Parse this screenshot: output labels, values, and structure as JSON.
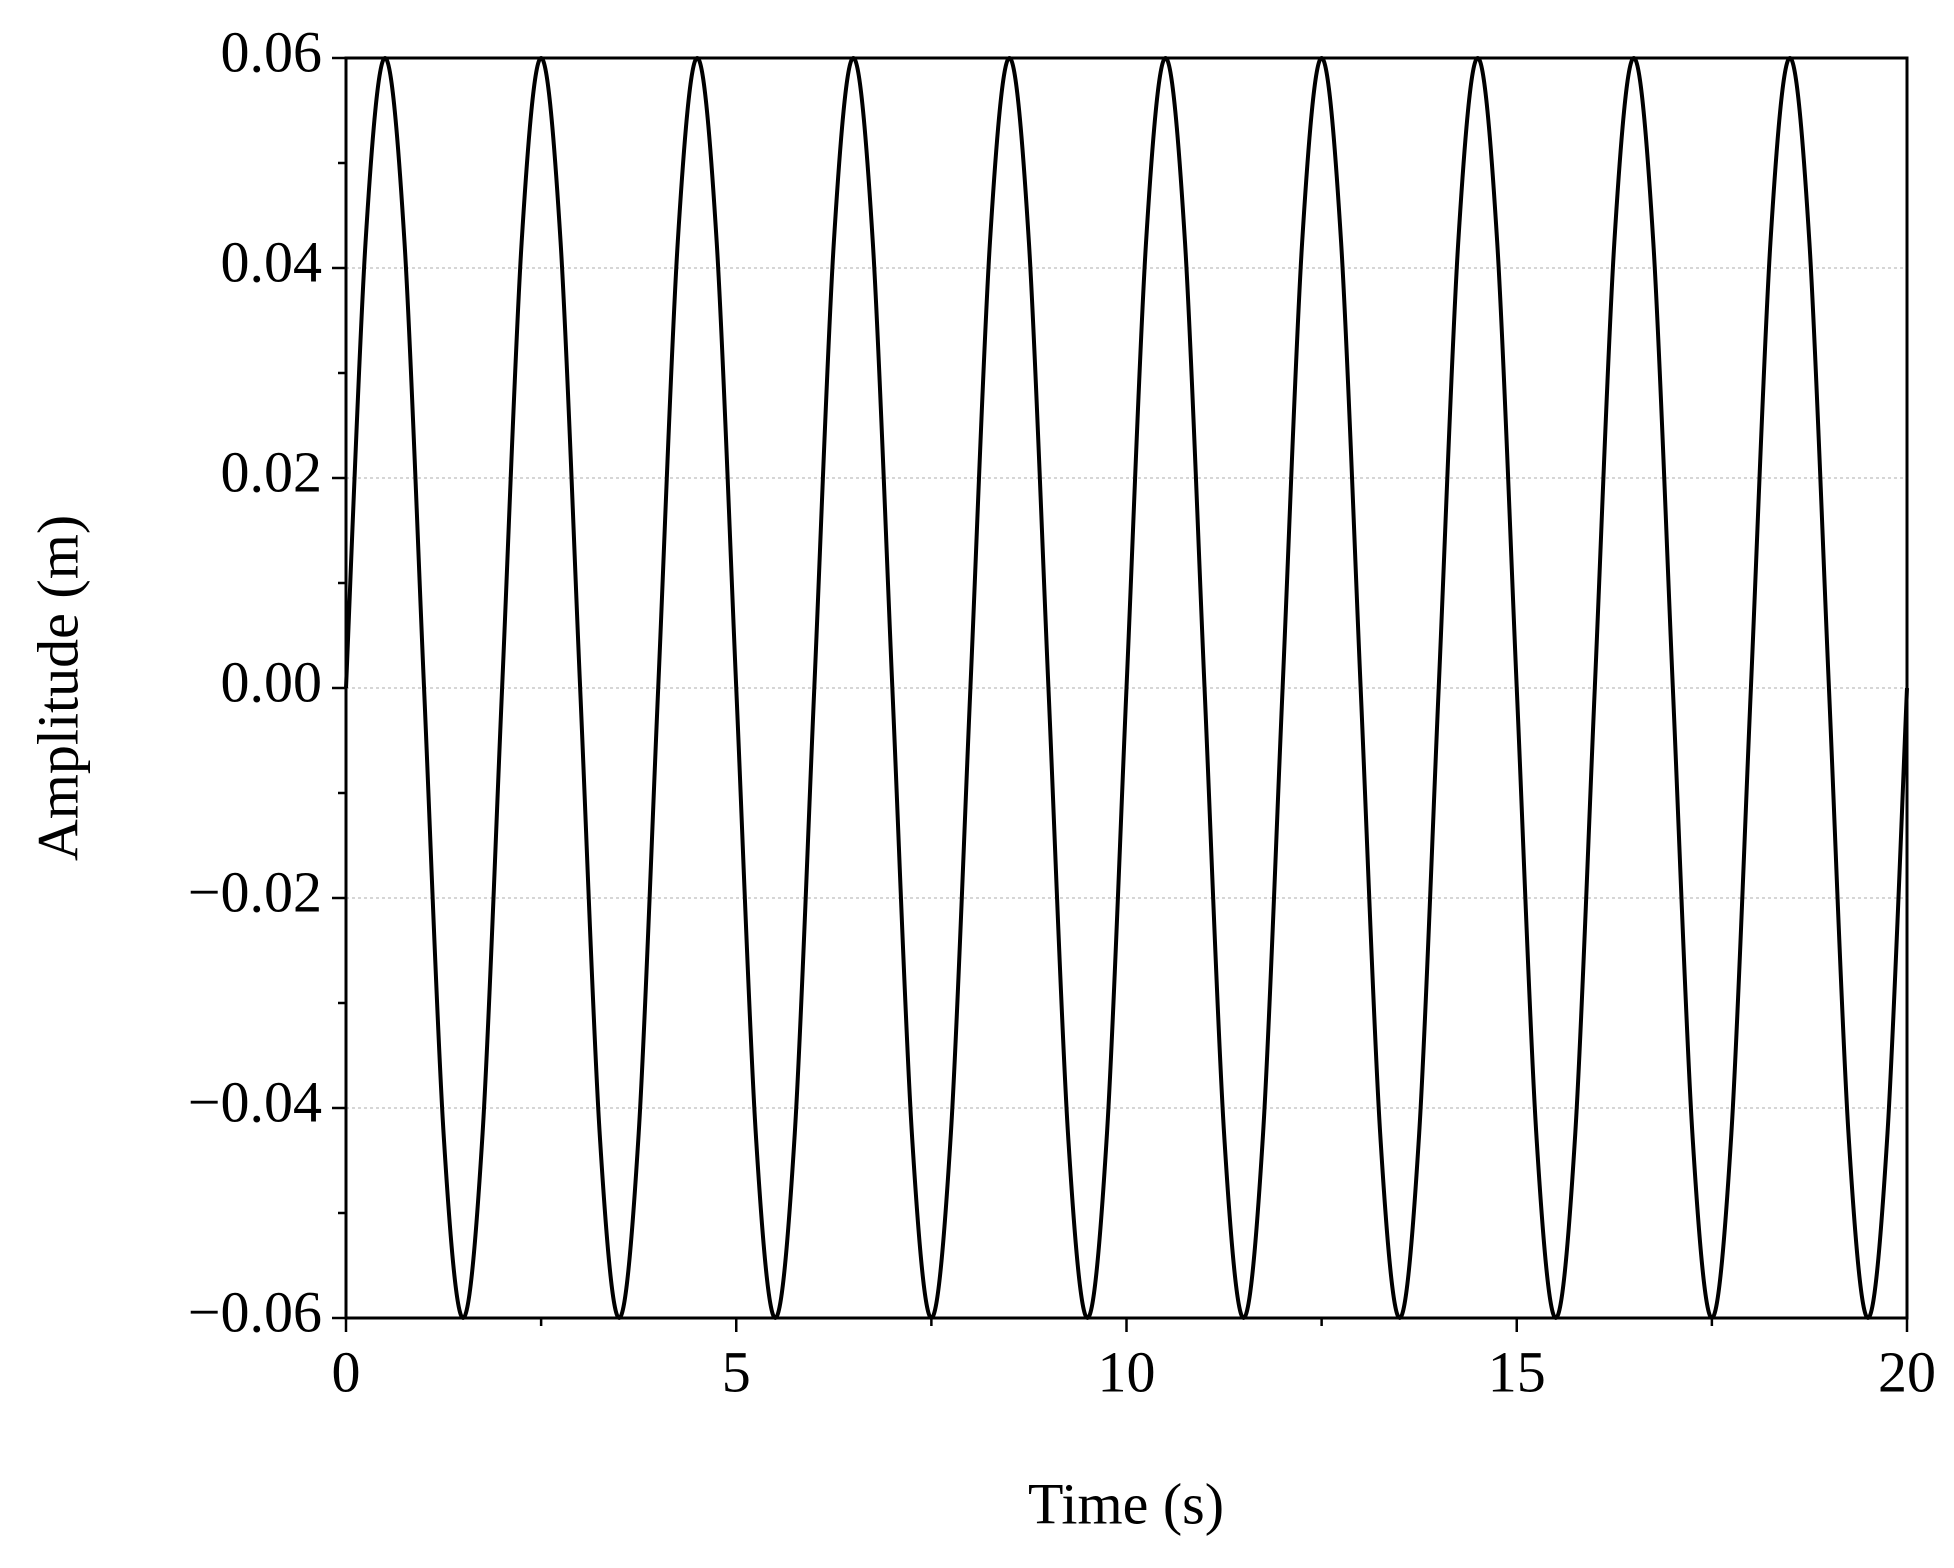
{
  "chart_data": {
    "type": "line",
    "x_label": "Time (s)",
    "y_label": "Amplitude (m)",
    "x": [
      0,
      0.25,
      0.5,
      0.75,
      1,
      1.25,
      1.5,
      1.75,
      2,
      2.25,
      2.5,
      2.75,
      3,
      3.25,
      3.5,
      3.75,
      4,
      4.25,
      4.5,
      4.75,
      5,
      5.25,
      5.5,
      5.75,
      6,
      6.25,
      6.5,
      6.75,
      7,
      7.25,
      7.5,
      7.75,
      8,
      8.25,
      8.5,
      8.75,
      9,
      9.25,
      9.5,
      9.75,
      10,
      10.25,
      10.5,
      10.75,
      11,
      11.25,
      11.5,
      11.75,
      12,
      12.25,
      12.5,
      12.75,
      13,
      13.25,
      13.5,
      13.75,
      14,
      14.25,
      14.5,
      14.75,
      15,
      15.25,
      15.5,
      15.75,
      16,
      16.25,
      16.5,
      16.75,
      17,
      17.25,
      17.5,
      17.75,
      18,
      18.25,
      18.5,
      18.75,
      19,
      19.25,
      19.5,
      19.75,
      20
    ],
    "series": [
      {
        "color": "#000000",
        "values": [
          0,
          0.0424,
          0.06,
          0.0424,
          0,
          -0.0424,
          -0.06,
          -0.0424,
          0,
          0.0424,
          0.06,
          0.0424,
          0,
          -0.0424,
          -0.06,
          -0.0424,
          0,
          0.0424,
          0.06,
          0.0424,
          0,
          -0.0424,
          -0.06,
          -0.0424,
          0,
          0.0424,
          0.06,
          0.0424,
          0,
          -0.0424,
          -0.06,
          -0.0424,
          0,
          0.0424,
          0.06,
          0.0424,
          0,
          -0.0424,
          -0.06,
          -0.0424,
          0,
          0.0424,
          0.06,
          0.0424,
          0,
          -0.0424,
          -0.06,
          -0.0424,
          0,
          0.0424,
          0.06,
          0.0424,
          0,
          -0.0424,
          -0.06,
          -0.0424,
          0,
          0.0424,
          0.06,
          0.0424,
          0,
          -0.0424,
          -0.06,
          -0.0424,
          0,
          0.0424,
          0.06,
          0.0424,
          0,
          -0.0424,
          -0.06,
          -0.0424,
          0,
          0.0424,
          0.06,
          0.0424,
          0,
          -0.0424,
          -0.06,
          -0.0424,
          0
        ]
      }
    ],
    "xlim": [
      0,
      20
    ],
    "xticks": [
      0,
      5,
      10,
      15,
      20
    ],
    "ylim": [
      -0.06,
      0.06
    ],
    "yticks": [
      {
        "value": -0.06,
        "label": "−0.06"
      },
      {
        "value": -0.04,
        "label": "−0.04"
      },
      {
        "value": -0.02,
        "label": "−0.02"
      },
      {
        "value": 0,
        "label": "0.00"
      },
      0.02,
      0.04,
      0.06
    ],
    "grid": true
  }
}
